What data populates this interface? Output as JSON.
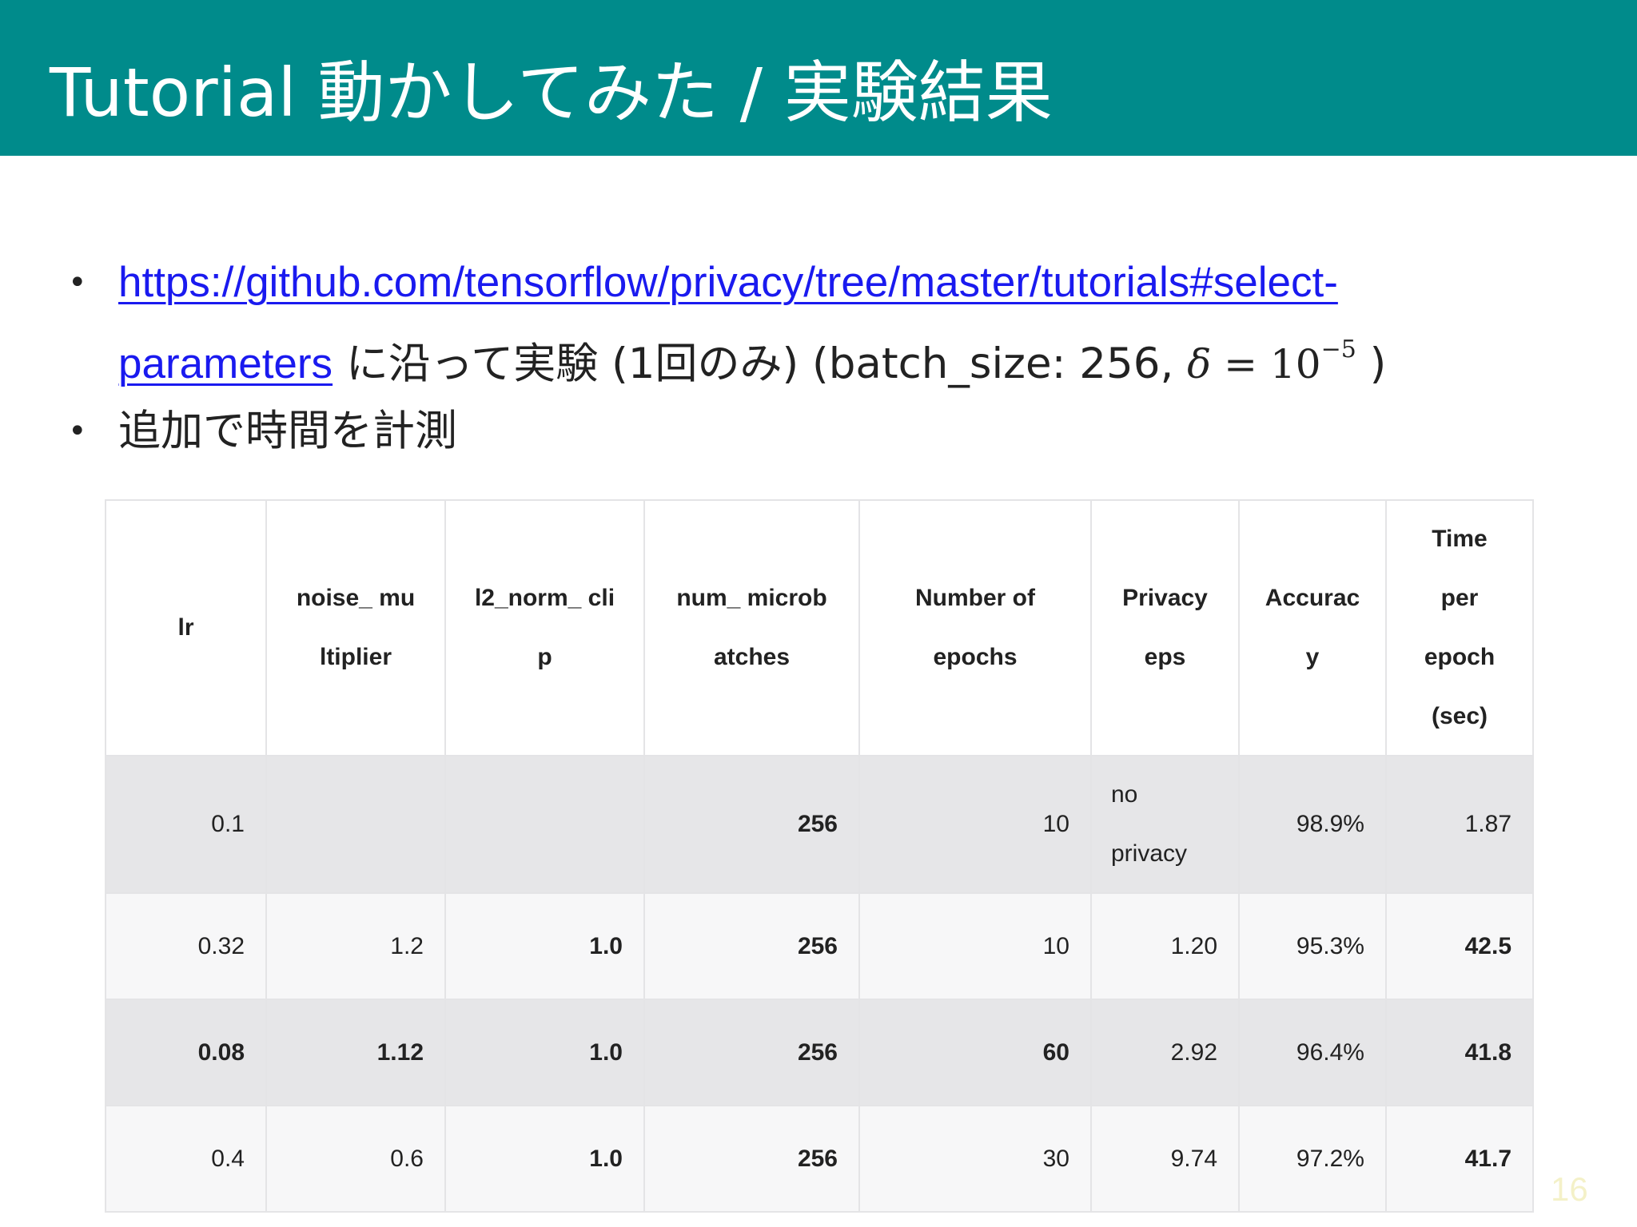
{
  "header": {
    "title": "Tutorial 動かしてみた / 実験結果",
    "color": "#008b8b"
  },
  "bullets": {
    "first": {
      "link_part1": "https://github.com/tensorflow/privacy/tree/master/tutorials#select-",
      "link_part2": "parameters",
      "text": " に沿って実験 (1回のみ) (batch_size: 256, ",
      "math_var": "δ",
      "math_eq": " = 10",
      "math_exp": "−5",
      "text_end": " )"
    },
    "second": {
      "text": "追加で時間を計測"
    }
  },
  "table": {
    "headers": [
      [
        "lr"
      ],
      [
        "noise_ mu",
        "ltiplier"
      ],
      [
        "l2_norm_ cli",
        "p"
      ],
      [
        "num_ microb",
        "atches"
      ],
      [
        "Number of",
        "epochs"
      ],
      [
        "Privacy",
        "eps"
      ],
      [
        "Accurac",
        "y"
      ],
      [
        "Time",
        "per",
        "epoch",
        "(sec)"
      ]
    ],
    "rows": [
      {
        "lr": "0.1",
        "noise_multiplier": "",
        "l2_norm_clip": "",
        "num_microbatches": "256",
        "epochs": "10",
        "privacy_eps": [
          "no",
          "privacy"
        ],
        "accuracy": "98.9%",
        "time": "1.87"
      },
      {
        "lr": "0.32",
        "noise_multiplier": "1.2",
        "l2_norm_clip": "1.0",
        "num_microbatches": "256",
        "epochs": "10",
        "privacy_eps": "1.20",
        "accuracy": "95.3%",
        "time": "42.5"
      },
      {
        "lr": "0.08",
        "noise_multiplier": "1.12",
        "l2_norm_clip": "1.0",
        "num_microbatches": "256",
        "epochs": "60",
        "privacy_eps": "2.92",
        "accuracy": "96.4%",
        "time": "41.8"
      },
      {
        "lr": "0.4",
        "noise_multiplier": "0.6",
        "l2_norm_clip": "1.0",
        "num_microbatches": "256",
        "epochs": "30",
        "privacy_eps": "9.74",
        "accuracy": "97.2%",
        "time": "41.7"
      }
    ]
  },
  "footer": {
    "page_number": "16"
  }
}
